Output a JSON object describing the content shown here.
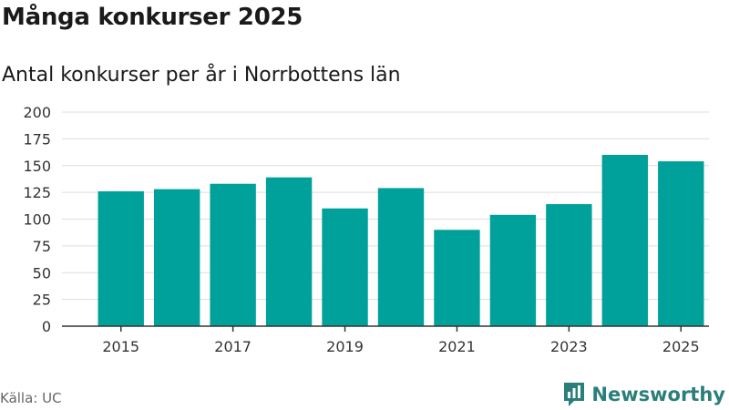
{
  "header": {
    "title": "Många konkurser 2025",
    "subtitle": "Antal konkurser per år i Norrbottens län"
  },
  "footer": {
    "source": "Källa: UC",
    "brand": "Newsworthy"
  },
  "colors": {
    "bar": "#00a19a",
    "grid": "#dddddd",
    "axis": "#333333",
    "brand": "#2a7f7a"
  },
  "chart_data": {
    "type": "bar",
    "categories": [
      "2015",
      "2016",
      "2017",
      "2018",
      "2019",
      "2020",
      "2021",
      "2022",
      "2023",
      "2024",
      "2025"
    ],
    "values": [
      126,
      128,
      133,
      139,
      110,
      129,
      90,
      104,
      114,
      160,
      154
    ],
    "x_tick_labels": [
      "2015",
      "2017",
      "2019",
      "2021",
      "2023",
      "2025"
    ],
    "y_ticks": [
      0,
      25,
      50,
      75,
      100,
      125,
      150,
      175,
      200
    ],
    "ylim": [
      0,
      200
    ],
    "title": "Många konkurser 2025",
    "subtitle": "Antal konkurser per år i Norrbottens län",
    "xlabel": "",
    "ylabel": "",
    "grid": true,
    "legend": "none"
  }
}
